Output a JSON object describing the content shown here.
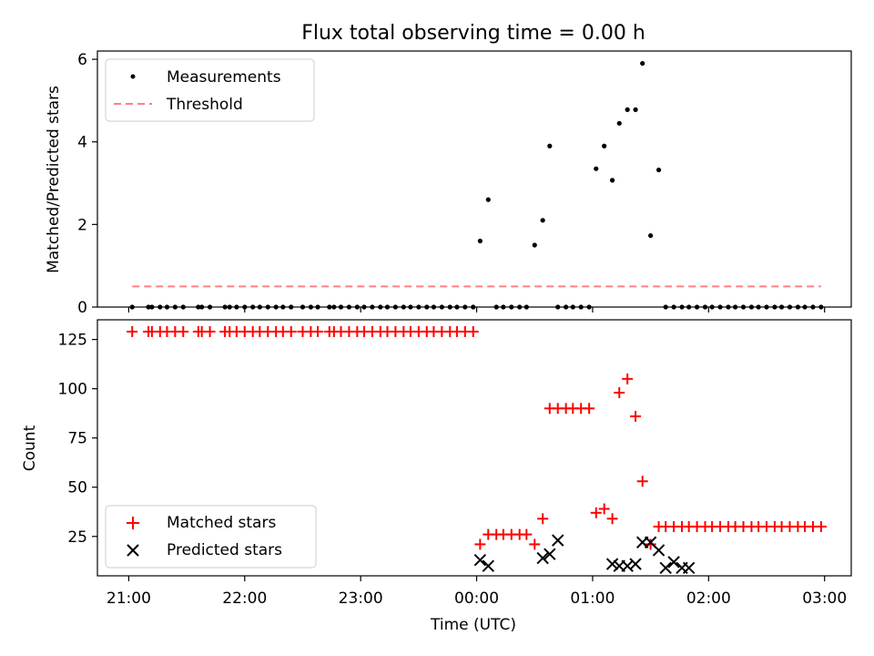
{
  "chart_data": {
    "title": "Flux total observing time = 0.00 h",
    "xlabel": "Time (UTC)",
    "x_ticks": [
      "21:00",
      "22:00",
      "23:00",
      "00:00",
      "01:00",
      "02:00",
      "03:00"
    ],
    "xlim_hours": [
      -0.27,
      6.23
    ],
    "panels": [
      {
        "type": "scatter",
        "ylabel": "Matched/Predicted stars",
        "ylim": [
          0,
          6.2
        ],
        "y_ticks": [
          0,
          2,
          4,
          6
        ],
        "legend": {
          "placement": "top-left",
          "entries": [
            "Measurements",
            "Threshold"
          ]
        },
        "threshold": {
          "name": "Threshold",
          "value": 0.5,
          "x_range": [
            0.03,
            5.97
          ],
          "color": "#ff8080"
        },
        "measurements": {
          "name": "Measurements",
          "color": "#000000",
          "x": [
            0.03,
            0.17,
            0.2,
            0.27,
            0.33,
            0.4,
            0.47,
            0.6,
            0.63,
            0.7,
            0.83,
            0.87,
            0.93,
            1.0,
            1.07,
            1.13,
            1.2,
            1.27,
            1.33,
            1.4,
            1.5,
            1.57,
            1.63,
            1.73,
            1.77,
            1.83,
            1.9,
            1.97,
            2.03,
            2.1,
            2.17,
            2.23,
            2.3,
            2.37,
            2.43,
            2.5,
            2.57,
            2.63,
            2.7,
            2.77,
            2.83,
            2.9,
            2.97,
            3.03,
            3.1,
            3.17,
            3.23,
            3.3,
            3.37,
            3.43,
            3.5,
            3.57,
            3.63,
            3.7,
            3.77,
            3.83,
            3.9,
            3.97,
            4.03,
            4.1,
            4.17,
            4.23,
            4.3,
            4.37,
            4.43,
            4.5,
            4.57,
            4.63,
            4.7,
            4.77,
            4.83,
            4.9,
            4.97,
            5.03,
            5.1,
            5.17,
            5.23,
            5.3,
            5.37,
            5.43,
            5.5,
            5.57,
            5.63,
            5.7,
            5.77,
            5.83,
            5.9,
            5.97
          ],
          "y": [
            0,
            0,
            0,
            0,
            0,
            0,
            0,
            0,
            0,
            0,
            0,
            0,
            0,
            0,
            0,
            0,
            0,
            0,
            0,
            0,
            0,
            0,
            0,
            0,
            0,
            0,
            0,
            0,
            0,
            0,
            0,
            0,
            0,
            0,
            0,
            0,
            0,
            0,
            0,
            0,
            0,
            0,
            0,
            1.6,
            2.6,
            0,
            0,
            0,
            0,
            0,
            1.5,
            2.1,
            3.9,
            0,
            0,
            0,
            0,
            0,
            3.35,
            3.9,
            3.07,
            4.45,
            4.78,
            4.78,
            5.9,
            1.73,
            3.32,
            0,
            0,
            0,
            0,
            0,
            0,
            0,
            0,
            0,
            0,
            0,
            0,
            0,
            0,
            0,
            0,
            0,
            0,
            0,
            0,
            0
          ]
        }
      },
      {
        "type": "scatter",
        "ylabel": "Count",
        "ylim": [
          5,
          135
        ],
        "y_ticks": [
          25,
          50,
          75,
          100,
          125
        ],
        "legend": {
          "placement": "lower-left",
          "entries": [
            "Matched stars",
            "Predicted stars"
          ]
        },
        "series": [
          {
            "name": "Matched stars",
            "marker": "plus",
            "color": "#ff0000",
            "x": [
              0.03,
              0.17,
              0.2,
              0.27,
              0.33,
              0.4,
              0.47,
              0.6,
              0.63,
              0.7,
              0.83,
              0.87,
              0.93,
              1.0,
              1.07,
              1.13,
              1.2,
              1.27,
              1.33,
              1.4,
              1.5,
              1.57,
              1.63,
              1.73,
              1.77,
              1.83,
              1.9,
              1.97,
              2.03,
              2.1,
              2.17,
              2.23,
              2.3,
              2.37,
              2.43,
              2.5,
              2.57,
              2.63,
              2.7,
              2.77,
              2.83,
              2.9,
              2.97,
              3.03,
              3.1,
              3.17,
              3.23,
              3.3,
              3.37,
              3.43,
              3.5,
              3.57,
              3.63,
              3.7,
              3.77,
              3.83,
              3.9,
              3.97,
              4.03,
              4.1,
              4.17,
              4.23,
              4.3,
              4.37,
              4.43,
              4.5,
              4.57,
              4.63,
              4.7,
              4.77,
              4.83,
              4.9,
              4.97,
              5.03,
              5.1,
              5.17,
              5.23,
              5.3,
              5.37,
              5.43,
              5.5,
              5.57,
              5.63,
              5.7,
              5.77,
              5.83,
              5.9,
              5.97
            ],
            "y": [
              129,
              129,
              129,
              129,
              129,
              129,
              129,
              129,
              129,
              129,
              129,
              129,
              129,
              129,
              129,
              129,
              129,
              129,
              129,
              129,
              129,
              129,
              129,
              129,
              129,
              129,
              129,
              129,
              129,
              129,
              129,
              129,
              129,
              129,
              129,
              129,
              129,
              129,
              129,
              129,
              129,
              129,
              129,
              21,
              26,
              26,
              26,
              26,
              26,
              26,
              21,
              34,
              90,
              90,
              90,
              90,
              90,
              90,
              37,
              39,
              34,
              98,
              105,
              86,
              53,
              21,
              30,
              30,
              30,
              30,
              30,
              30,
              30,
              30,
              30,
              30,
              30,
              30,
              30,
              30,
              30,
              30,
              30,
              30,
              30,
              30,
              30,
              30
            ]
          },
          {
            "name": "Predicted stars",
            "marker": "x",
            "color": "#000000",
            "x": [
              3.03,
              3.1,
              3.57,
              3.63,
              3.7,
              4.17,
              4.23,
              4.3,
              4.37,
              4.43,
              4.5,
              4.57,
              4.63,
              4.7,
              4.77,
              4.83
            ],
            "y": [
              13,
              10,
              14,
              16,
              23,
              11,
              10,
              10,
              11,
              22,
              22,
              18,
              9,
              12,
              9,
              9
            ]
          }
        ]
      }
    ]
  }
}
